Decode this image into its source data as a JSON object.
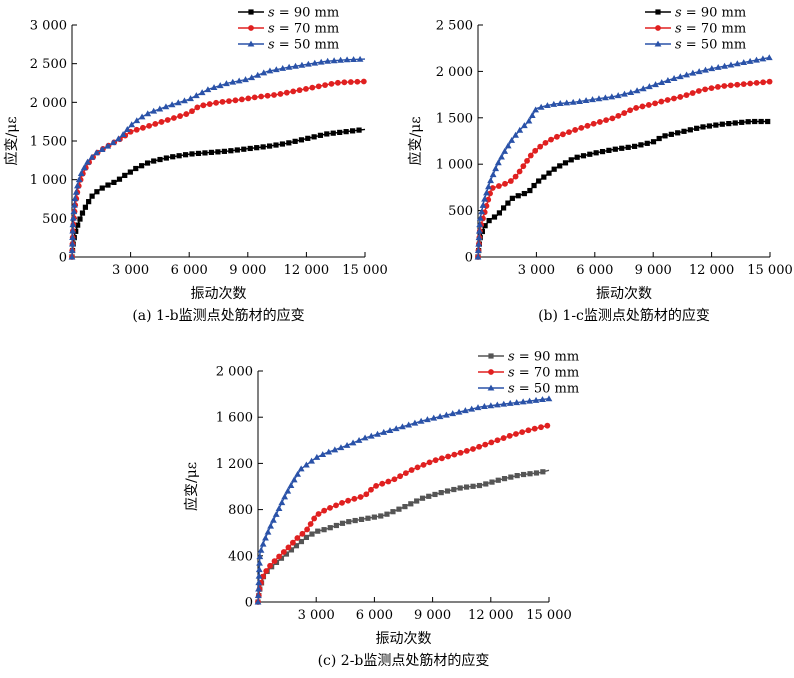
{
  "chart_data": [
    {
      "type": "line",
      "caption": "(a) 1-b监测点处筋材的应变",
      "xlabel": "振动次数",
      "ylabel": "应变/με",
      "xlim": [
        0,
        15000
      ],
      "ylim": [
        0,
        3000
      ],
      "xticks": [
        3000,
        6000,
        9000,
        12000,
        15000
      ],
      "xtick_labels": [
        "3 000",
        "6 000",
        "9 000",
        "12 000",
        "15 000"
      ],
      "yticks": [
        0,
        500,
        1000,
        1500,
        2000,
        2500,
        3000
      ],
      "ytick_labels": [
        "0",
        "500",
        "1 000",
        "1 500",
        "2 000",
        "2 500",
        "3 000"
      ],
      "legend_position": "top-right",
      "series": [
        {
          "name_var": "s",
          "name_rest": " = 90 mm",
          "color": "#000000",
          "marker": "square",
          "points": [
            [
              0,
              0
            ],
            [
              50,
              150
            ],
            [
              150,
              300
            ],
            [
              300,
              420
            ],
            [
              500,
              550
            ],
            [
              700,
              650
            ],
            [
              1000,
              780
            ],
            [
              1300,
              850
            ],
            [
              1600,
              900
            ],
            [
              2000,
              950
            ],
            [
              2300,
              980
            ],
            [
              2600,
              1040
            ],
            [
              3000,
              1100
            ],
            [
              3300,
              1150
            ],
            [
              4000,
              1230
            ],
            [
              5000,
              1290
            ],
            [
              6000,
              1330
            ],
            [
              7000,
              1350
            ],
            [
              8000,
              1370
            ],
            [
              9000,
              1400
            ],
            [
              10000,
              1430
            ],
            [
              11000,
              1470
            ],
            [
              12000,
              1530
            ],
            [
              13000,
              1590
            ],
            [
              14000,
              1620
            ],
            [
              15000,
              1650
            ]
          ]
        },
        {
          "name_var": "s",
          "name_rest": " = 70 mm",
          "color": "#e02020",
          "marker": "circle",
          "points": [
            [
              0,
              0
            ],
            [
              50,
              350
            ],
            [
              150,
              650
            ],
            [
              300,
              880
            ],
            [
              500,
              1050
            ],
            [
              800,
              1200
            ],
            [
              1200,
              1330
            ],
            [
              1600,
              1400
            ],
            [
              2000,
              1460
            ],
            [
              2500,
              1530
            ],
            [
              3000,
              1620
            ],
            [
              3500,
              1660
            ],
            [
              4000,
              1700
            ],
            [
              5000,
              1780
            ],
            [
              6000,
              1860
            ],
            [
              6500,
              1950
            ],
            [
              7500,
              2000
            ],
            [
              8500,
              2030
            ],
            [
              9500,
              2070
            ],
            [
              10500,
              2100
            ],
            [
              11500,
              2150
            ],
            [
              12500,
              2200
            ],
            [
              13500,
              2250
            ],
            [
              14000,
              2260
            ],
            [
              15000,
              2270
            ]
          ]
        },
        {
          "name_var": "s",
          "name_rest": " = 50 mm",
          "color": "#2a52a8",
          "marker": "triangle",
          "points": [
            [
              0,
              0
            ],
            [
              50,
              450
            ],
            [
              150,
              750
            ],
            [
              300,
              950
            ],
            [
              500,
              1100
            ],
            [
              800,
              1230
            ],
            [
              1200,
              1340
            ],
            [
              1600,
              1400
            ],
            [
              2000,
              1460
            ],
            [
              2500,
              1550
            ],
            [
              3000,
              1700
            ],
            [
              3500,
              1800
            ],
            [
              4000,
              1870
            ],
            [
              5000,
              1960
            ],
            [
              6000,
              2040
            ],
            [
              7000,
              2170
            ],
            [
              8000,
              2250
            ],
            [
              9000,
              2300
            ],
            [
              10000,
              2400
            ],
            [
              11000,
              2450
            ],
            [
              12000,
              2490
            ],
            [
              13000,
              2530
            ],
            [
              14000,
              2550
            ],
            [
              15000,
              2560
            ]
          ]
        }
      ]
    },
    {
      "type": "line",
      "caption": "(b) 1-c监测点处筋材的应变",
      "xlabel": "振动次数",
      "ylabel": "应变/με",
      "xlim": [
        0,
        15000
      ],
      "ylim": [
        0,
        2500
      ],
      "xticks": [
        3000,
        6000,
        9000,
        12000,
        15000
      ],
      "xtick_labels": [
        "3 000",
        "6 000",
        "9 000",
        "12 000",
        "15 000"
      ],
      "yticks": [
        0,
        500,
        1000,
        1500,
        2000,
        2500
      ],
      "ytick_labels": [
        "0",
        "500",
        "1 000",
        "1 500",
        "2 000",
        "2 500"
      ],
      "legend_position": "top-right",
      "series": [
        {
          "name_var": "s",
          "name_rest": " = 90 mm",
          "color": "#000000",
          "marker": "square",
          "points": [
            [
              0,
              0
            ],
            [
              100,
              200
            ],
            [
              300,
              320
            ],
            [
              600,
              400
            ],
            [
              1000,
              450
            ],
            [
              1400,
              550
            ],
            [
              1800,
              640
            ],
            [
              2200,
              670
            ],
            [
              2600,
              700
            ],
            [
              3000,
              800
            ],
            [
              3500,
              880
            ],
            [
              4000,
              960
            ],
            [
              5000,
              1070
            ],
            [
              6000,
              1120
            ],
            [
              7000,
              1160
            ],
            [
              8000,
              1190
            ],
            [
              9000,
              1240
            ],
            [
              9500,
              1300
            ],
            [
              10500,
              1350
            ],
            [
              11500,
              1400
            ],
            [
              12500,
              1430
            ],
            [
              13500,
              1450
            ],
            [
              14000,
              1460
            ],
            [
              15000,
              1460
            ]
          ]
        },
        {
          "name_var": "s",
          "name_rest": " = 70 mm",
          "color": "#e02020",
          "marker": "circle",
          "points": [
            [
              0,
              0
            ],
            [
              100,
              300
            ],
            [
              300,
              450
            ],
            [
              500,
              600
            ],
            [
              700,
              740
            ],
            [
              1000,
              760
            ],
            [
              1300,
              780
            ],
            [
              1700,
              820
            ],
            [
              2000,
              880
            ],
            [
              2400,
              1000
            ],
            [
              2800,
              1120
            ],
            [
              3200,
              1190
            ],
            [
              3600,
              1250
            ],
            [
              4200,
              1310
            ],
            [
              5000,
              1370
            ],
            [
              6000,
              1440
            ],
            [
              7000,
              1500
            ],
            [
              8000,
              1600
            ],
            [
              9000,
              1650
            ],
            [
              9500,
              1680
            ],
            [
              10500,
              1730
            ],
            [
              11500,
              1800
            ],
            [
              12500,
              1840
            ],
            [
              13500,
              1860
            ],
            [
              14500,
              1880
            ],
            [
              15000,
              1890
            ]
          ]
        },
        {
          "name_var": "s",
          "name_rest": " = 50 mm",
          "color": "#2a52a8",
          "marker": "triangle",
          "points": [
            [
              0,
              0
            ],
            [
              100,
              400
            ],
            [
              300,
              600
            ],
            [
              600,
              800
            ],
            [
              1000,
              1000
            ],
            [
              1400,
              1150
            ],
            [
              1800,
              1280
            ],
            [
              2200,
              1380
            ],
            [
              2600,
              1460
            ],
            [
              3000,
              1600
            ],
            [
              3500,
              1630
            ],
            [
              4000,
              1650
            ],
            [
              5000,
              1670
            ],
            [
              6000,
              1700
            ],
            [
              7000,
              1730
            ],
            [
              8000,
              1780
            ],
            [
              9000,
              1850
            ],
            [
              10000,
              1920
            ],
            [
              11000,
              1980
            ],
            [
              12000,
              2030
            ],
            [
              13000,
              2070
            ],
            [
              14000,
              2110
            ],
            [
              15000,
              2150
            ]
          ]
        }
      ]
    },
    {
      "type": "line",
      "caption": "(c) 2-b监测点处筋材的应变",
      "xlabel": "振动次数",
      "ylabel": "应变/με",
      "xlim": [
        0,
        15000
      ],
      "ylim": [
        0,
        2000
      ],
      "xticks": [
        3000,
        6000,
        9000,
        12000,
        15000
      ],
      "xtick_labels": [
        "3 000",
        "6 000",
        "9 000",
        "12 000",
        "15 000"
      ],
      "yticks": [
        0,
        400,
        800,
        1200,
        1600,
        2000
      ],
      "ytick_labels": [
        "0",
        "400",
        "800",
        "1 200",
        "1 600",
        "2 000"
      ],
      "legend_position": "top-right",
      "series": [
        {
          "name_var": "s",
          "name_rest": " = 90 mm",
          "color": "#555555",
          "marker": "square",
          "points": [
            [
              0,
              0
            ],
            [
              100,
              120
            ],
            [
              300,
              230
            ],
            [
              600,
              290
            ],
            [
              1000,
              350
            ],
            [
              1500,
              420
            ],
            [
              2000,
              490
            ],
            [
              2500,
              560
            ],
            [
              3000,
              610
            ],
            [
              3500,
              630
            ],
            [
              4000,
              660
            ],
            [
              4500,
              690
            ],
            [
              5500,
              720
            ],
            [
              6500,
              750
            ],
            [
              7500,
              820
            ],
            [
              8500,
              900
            ],
            [
              9500,
              950
            ],
            [
              10500,
              990
            ],
            [
              11500,
              1010
            ],
            [
              12500,
              1060
            ],
            [
              13500,
              1100
            ],
            [
              14500,
              1120
            ],
            [
              15000,
              1140
            ]
          ]
        },
        {
          "name_var": "s",
          "name_rest": " = 70 mm",
          "color": "#e02020",
          "marker": "circle",
          "points": [
            [
              0,
              0
            ],
            [
              100,
              140
            ],
            [
              300,
              240
            ],
            [
              600,
              310
            ],
            [
              1000,
              380
            ],
            [
              1500,
              460
            ],
            [
              2000,
              550
            ],
            [
              2500,
              620
            ],
            [
              3000,
              750
            ],
            [
              3500,
              800
            ],
            [
              4500,
              870
            ],
            [
              5500,
              920
            ],
            [
              6000,
              1000
            ],
            [
              7000,
              1060
            ],
            [
              8000,
              1150
            ],
            [
              9000,
              1220
            ],
            [
              10000,
              1270
            ],
            [
              11000,
              1320
            ],
            [
              12000,
              1380
            ],
            [
              13000,
              1440
            ],
            [
              14000,
              1490
            ],
            [
              15000,
              1530
            ]
          ]
        },
        {
          "name_var": "s",
          "name_rest": " = 50 mm",
          "color": "#2a52a8",
          "marker": "triangle",
          "points": [
            [
              0,
              0
            ],
            [
              100,
              420
            ],
            [
              300,
              520
            ],
            [
              600,
              640
            ],
            [
              1000,
              780
            ],
            [
              1400,
              920
            ],
            [
              1800,
              1040
            ],
            [
              2200,
              1150
            ],
            [
              2600,
              1200
            ],
            [
              3000,
              1250
            ],
            [
              3500,
              1290
            ],
            [
              4500,
              1350
            ],
            [
              5500,
              1420
            ],
            [
              6500,
              1470
            ],
            [
              7500,
              1520
            ],
            [
              8500,
              1570
            ],
            [
              9500,
              1610
            ],
            [
              10500,
              1650
            ],
            [
              11500,
              1690
            ],
            [
              12500,
              1710
            ],
            [
              13500,
              1730
            ],
            [
              14500,
              1750
            ],
            [
              15000,
              1760
            ]
          ]
        }
      ]
    }
  ]
}
